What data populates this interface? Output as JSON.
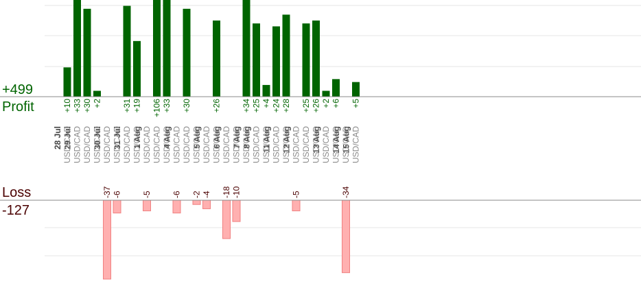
{
  "chart_data": {
    "type": "bar",
    "summary": {
      "profit_total": "+499",
      "profit_label": "Profit",
      "loss_label": "Loss",
      "loss_total": "-127"
    },
    "colors": {
      "profit_bar": "#006400",
      "loss_bar": "#ffb0b0",
      "loss_bar_edge": "#f08080",
      "profit_text": "#006400",
      "loss_text": "#4a0000",
      "date_text": "#444444",
      "pair_text": "#8a8a8a",
      "grid": "#e6e6e6",
      "axis": "#888888"
    },
    "profit_scale_max": 33,
    "loss_scale_max": 37,
    "dates": [
      "28 Jul",
      "29 Jul",
      "30 Jul",
      "31 Jul",
      "1 Aug",
      "4 Aug",
      "5 Aug",
      "6 Aug",
      "7 Aug",
      "8 Aug",
      "11 Aug",
      "12 Aug",
      "13 Aug",
      "14 Aug",
      "15 Aug"
    ],
    "trades": [
      {
        "date": "28 Jul",
        "pair": "USD/CAD",
        "value": 10,
        "label": "+10"
      },
      {
        "date": "29 Jul",
        "pair": "USD/CAD",
        "value": 33,
        "label": "+33"
      },
      {
        "date": "29 Jul",
        "pair": "USD/CAD",
        "value": 30,
        "label": "+30"
      },
      {
        "date": "29 Jul",
        "pair": "USD/CAD",
        "value": 2,
        "label": "+2"
      },
      {
        "date": "30 Jul",
        "pair": "USD/CAD",
        "value": -37,
        "label": "-37"
      },
      {
        "date": "30 Jul",
        "pair": "USD/CAD",
        "value": -6,
        "label": "-6"
      },
      {
        "date": "31 Jul",
        "pair": "USD/CAD",
        "value": 31,
        "label": "+31"
      },
      {
        "date": "31 Jul",
        "pair": "USD/CAD",
        "value": 19,
        "label": "+19"
      },
      {
        "date": "1 Aug",
        "pair": "USD/CAD",
        "value": -5,
        "label": "-5"
      },
      {
        "date": "1 Aug",
        "pair": "USD/CAD",
        "value": 106,
        "label": "+106"
      },
      {
        "date": "1 Aug",
        "pair": "USD/CAD",
        "value": 33,
        "label": "+33"
      },
      {
        "date": "4 Aug",
        "pair": "USD/CAD",
        "value": -6,
        "label": "-6"
      },
      {
        "date": "4 Aug",
        "pair": "USD/CAD",
        "value": 30,
        "label": "+30"
      },
      {
        "date": "4 Aug",
        "pair": "USD/CAD",
        "value": -2,
        "label": "-2"
      },
      {
        "date": "5 Aug",
        "pair": "USD/CAD",
        "value": -4,
        "label": "-4"
      },
      {
        "date": "5 Aug",
        "pair": "USD/CAD",
        "value": 26,
        "label": "+26"
      },
      {
        "date": "6 Aug",
        "pair": "USD/CAD",
        "value": -18,
        "label": "-18"
      },
      {
        "date": "6 Aug",
        "pair": "USD/CAD",
        "value": -10,
        "label": "-10"
      },
      {
        "date": "7 Aug",
        "pair": "USD/CAD",
        "value": 34,
        "label": "+34"
      },
      {
        "date": "8 Aug",
        "pair": "USD/CAD",
        "value": 25,
        "label": "+25"
      },
      {
        "date": "8 Aug",
        "pair": "USD/CAD",
        "value": 4,
        "label": "+4"
      },
      {
        "date": "11 Aug",
        "pair": "USD/CAD",
        "value": 24,
        "label": "+24"
      },
      {
        "date": "11 Aug",
        "pair": "USD/CAD",
        "value": 28,
        "label": "+28"
      },
      {
        "date": "12 Aug",
        "pair": "USD/CAD",
        "value": -5,
        "label": "-5"
      },
      {
        "date": "12 Aug",
        "pair": "USD/CAD",
        "value": 25,
        "label": "+25"
      },
      {
        "date": "12 Aug",
        "pair": "USD/CAD",
        "value": 26,
        "label": "+26"
      },
      {
        "date": "13 Aug",
        "pair": "USD/CAD",
        "value": 2,
        "label": "+2"
      },
      {
        "date": "13 Aug",
        "pair": "USD/CAD",
        "value": 6,
        "label": "+6"
      },
      {
        "date": "14 Aug",
        "pair": "USD/CAD",
        "value": -34,
        "label": "-34"
      },
      {
        "date": "15 Aug",
        "pair": "USD/CAD",
        "value": 5,
        "label": "+5"
      }
    ]
  }
}
